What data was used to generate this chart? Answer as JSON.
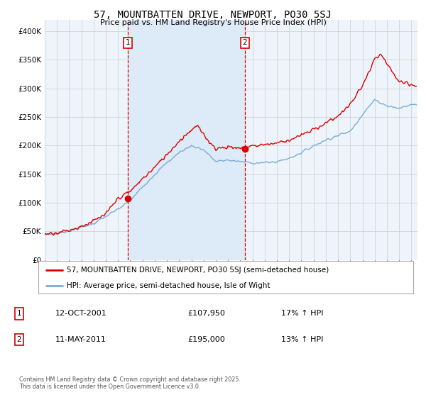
{
  "title": "57, MOUNTBATTEN DRIVE, NEWPORT, PO30 5SJ",
  "subtitle": "Price paid vs. HM Land Registry's House Price Index (HPI)",
  "ylim": [
    0,
    420000
  ],
  "yticks": [
    0,
    50000,
    100000,
    150000,
    200000,
    250000,
    300000,
    350000,
    400000
  ],
  "xlim_start": 1995.0,
  "xlim_end": 2025.5,
  "legend_line1": "57, MOUNTBATTEN DRIVE, NEWPORT, PO30 5SJ (semi-detached house)",
  "legend_line2": "HPI: Average price, semi-detached house, Isle of Wight",
  "annotation1_date": "12-OCT-2001",
  "annotation1_price": "£107,950",
  "annotation1_hpi": "17% ↑ HPI",
  "annotation2_date": "11-MAY-2011",
  "annotation2_price": "£195,000",
  "annotation2_hpi": "13% ↑ HPI",
  "footnote": "Contains HM Land Registry data © Crown copyright and database right 2025.\nThis data is licensed under the Open Government Licence v3.0.",
  "red_color": "#dd0000",
  "blue_color": "#7aaed6",
  "bg_color": "#eef4fb",
  "highlight_bg": "#ddeaf8",
  "plot_bg": "#ffffff",
  "vline1_x": 2001.79,
  "vline2_x": 2011.37,
  "marker1_x": 2001.79,
  "marker1_y": 107950,
  "marker2_x": 2011.37,
  "marker2_y": 195000,
  "title_fontsize": 10,
  "subtitle_fontsize": 8
}
